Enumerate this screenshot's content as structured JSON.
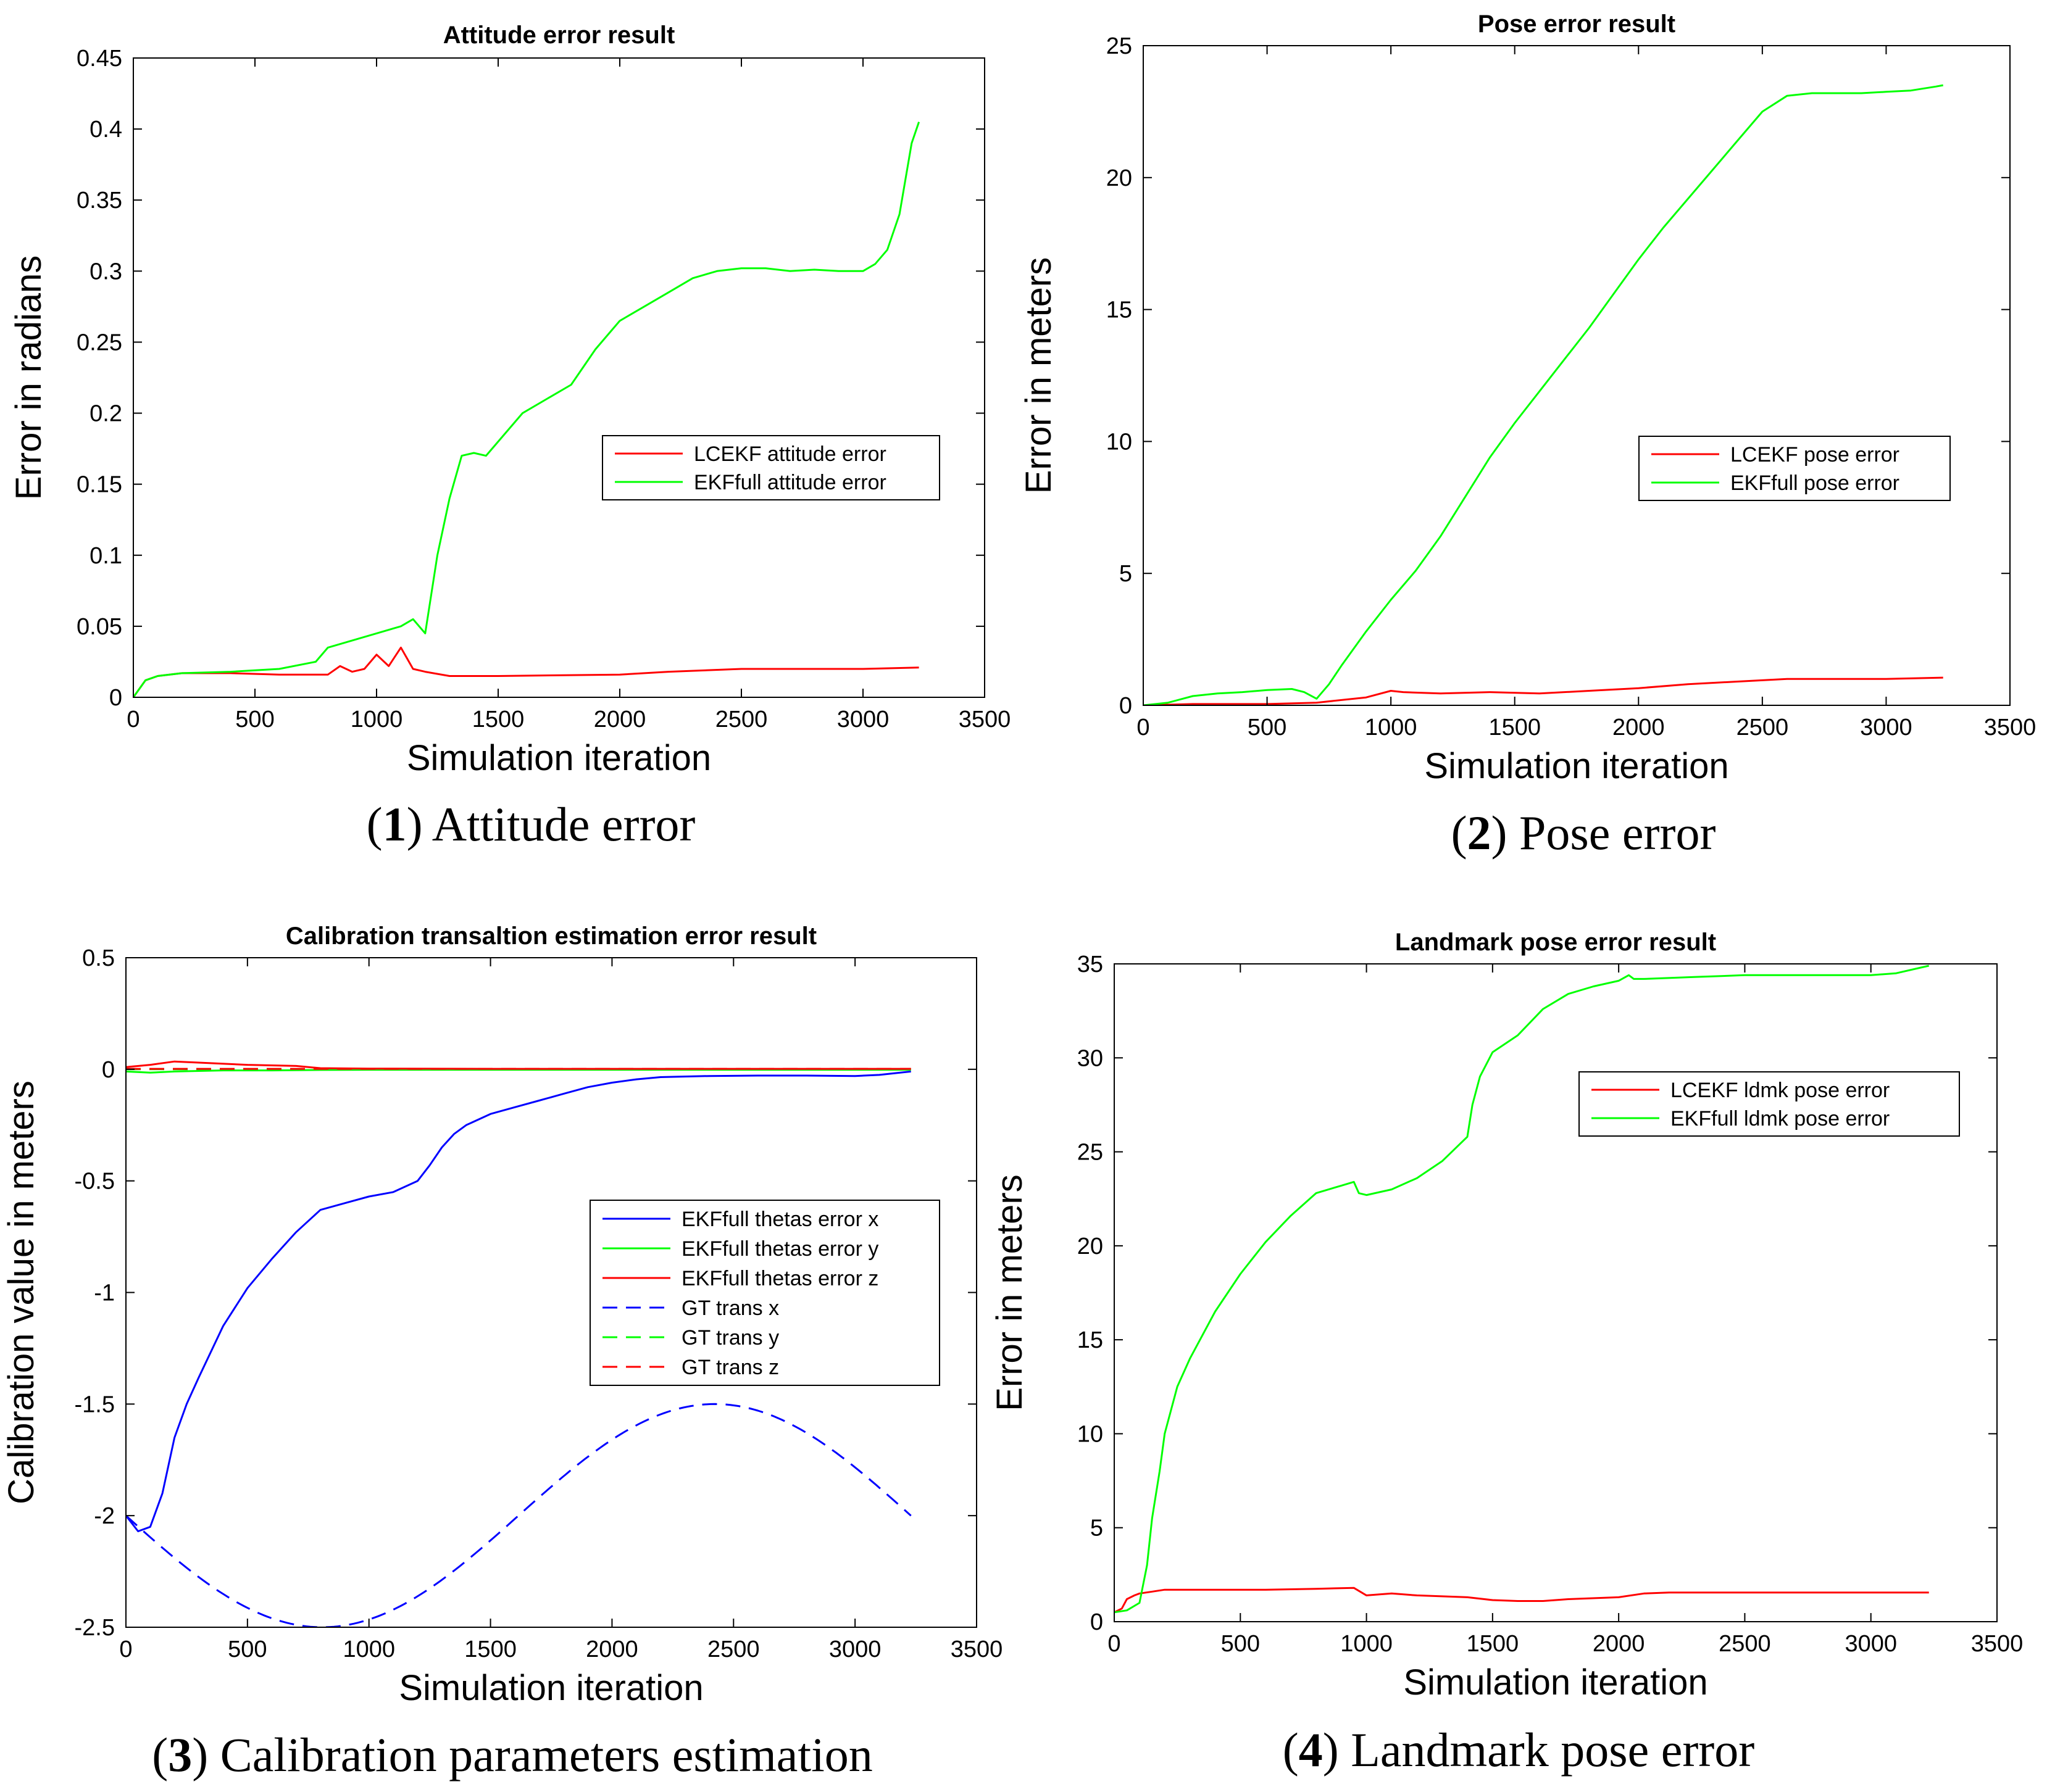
{
  "figure": {
    "panels": [
      {
        "caption_number": "1",
        "caption_text": "Attitude error"
      },
      {
        "caption_number": "2",
        "caption_text": "Pose error"
      },
      {
        "caption_number": "3",
        "caption_text": "Calibration parameters estimation"
      },
      {
        "caption_number": "4",
        "caption_text": "Landmark pose error"
      }
    ]
  },
  "colors": {
    "red": "#ff0000",
    "green": "#00ff00",
    "blue": "#0000ff",
    "axis": "#000000"
  },
  "chart_data": [
    {
      "type": "line",
      "title": "Attitude error result",
      "xlabel": "Simulation iteration",
      "ylabel": "Error in radians",
      "xlim": [
        0,
        3500
      ],
      "ylim": [
        0,
        0.45
      ],
      "xticks": [
        0,
        500,
        1000,
        1500,
        2000,
        2500,
        3000,
        3500
      ],
      "xtick_labels": [
        "0",
        "500",
        "1000",
        "1500",
        "2000",
        "2500",
        "3000",
        "3500"
      ],
      "yticks": [
        0,
        0.05,
        0.1,
        0.15,
        0.2,
        0.25,
        0.3,
        0.35,
        0.4,
        0.45
      ],
      "ytick_labels": [
        "0",
        "0.05",
        "0.1",
        "0.15",
        "0.2",
        "0.25",
        "0.3",
        "0.35",
        "0.4",
        "0.45"
      ],
      "legend_position": "middle-right",
      "series": [
        {
          "name": "LCEKF attitude error",
          "color": "#ff0000",
          "style": "solid",
          "x": [
            0,
            50,
            100,
            200,
            400,
            600,
            800,
            850,
            900,
            950,
            1000,
            1050,
            1100,
            1150,
            1200,
            1300,
            1500,
            2000,
            2200,
            2500,
            3000,
            3230
          ],
          "y": [
            0,
            0.012,
            0.015,
            0.017,
            0.017,
            0.016,
            0.016,
            0.022,
            0.018,
            0.02,
            0.03,
            0.022,
            0.035,
            0.02,
            0.018,
            0.015,
            0.015,
            0.016,
            0.018,
            0.02,
            0.02,
            0.021
          ]
        },
        {
          "name": "EKFfull attitude error",
          "color": "#00ff00",
          "style": "solid",
          "x": [
            0,
            50,
            100,
            200,
            400,
            600,
            750,
            800,
            900,
            1000,
            1100,
            1150,
            1200,
            1250,
            1300,
            1350,
            1400,
            1450,
            1500,
            1600,
            1700,
            1800,
            1900,
            2000,
            2100,
            2200,
            2300,
            2400,
            2500,
            2600,
            2700,
            2800,
            2900,
            3000,
            3050,
            3100,
            3150,
            3200,
            3230
          ],
          "y": [
            0,
            0.012,
            0.015,
            0.017,
            0.018,
            0.02,
            0.025,
            0.035,
            0.04,
            0.045,
            0.05,
            0.055,
            0.045,
            0.1,
            0.14,
            0.17,
            0.172,
            0.17,
            0.18,
            0.2,
            0.21,
            0.22,
            0.245,
            0.265,
            0.275,
            0.285,
            0.295,
            0.3,
            0.302,
            0.302,
            0.3,
            0.301,
            0.3,
            0.3,
            0.305,
            0.315,
            0.34,
            0.39,
            0.405
          ]
        }
      ]
    },
    {
      "type": "line",
      "title": "Pose error result",
      "xlabel": "Simulation iteration",
      "ylabel": "Error in meters",
      "xlim": [
        0,
        3500
      ],
      "ylim": [
        0,
        25
      ],
      "xticks": [
        0,
        500,
        1000,
        1500,
        2000,
        2500,
        3000,
        3500
      ],
      "xtick_labels": [
        "0",
        "500",
        "1000",
        "1500",
        "2000",
        "2500",
        "3000",
        "3500"
      ],
      "yticks": [
        0,
        5,
        10,
        15,
        20,
        25
      ],
      "ytick_labels": [
        "0",
        "5",
        "10",
        "15",
        "20",
        "25"
      ],
      "legend_position": "middle-right",
      "series": [
        {
          "name": "LCEKF pose error",
          "color": "#ff0000",
          "style": "solid",
          "x": [
            0,
            200,
            500,
            700,
            900,
            1000,
            1050,
            1200,
            1400,
            1600,
            1800,
            2000,
            2200,
            2400,
            2600,
            2800,
            3000,
            3230
          ],
          "y": [
            0,
            0.05,
            0.05,
            0.1,
            0.3,
            0.55,
            0.5,
            0.45,
            0.5,
            0.45,
            0.55,
            0.65,
            0.8,
            0.9,
            1.0,
            1.0,
            1.0,
            1.05
          ]
        },
        {
          "name": "EKFfull pose error",
          "color": "#00ff00",
          "style": "solid",
          "x": [
            0,
            100,
            200,
            300,
            400,
            500,
            600,
            650,
            700,
            750,
            800,
            900,
            1000,
            1100,
            1200,
            1300,
            1400,
            1500,
            1600,
            1700,
            1800,
            1900,
            2000,
            2100,
            2200,
            2300,
            2400,
            2500,
            2600,
            2700,
            2800,
            2900,
            3000,
            3100,
            3200,
            3230
          ],
          "y": [
            0,
            0.1,
            0.35,
            0.45,
            0.5,
            0.58,
            0.62,
            0.5,
            0.25,
            0.8,
            1.5,
            2.8,
            4.0,
            5.1,
            6.4,
            7.9,
            9.4,
            10.7,
            11.9,
            13.1,
            14.3,
            15.6,
            16.9,
            18.1,
            19.2,
            20.3,
            21.4,
            22.5,
            23.1,
            23.2,
            23.2,
            23.2,
            23.25,
            23.3,
            23.45,
            23.5
          ]
        }
      ]
    },
    {
      "type": "line",
      "title": "Calibration transaltion estimation error result",
      "xlabel": "Simulation iteration",
      "ylabel": "Calibration value in meters",
      "xlim": [
        0,
        3500
      ],
      "ylim": [
        -2.5,
        0.5
      ],
      "xticks": [
        0,
        500,
        1000,
        1500,
        2000,
        2500,
        3000,
        3500
      ],
      "xtick_labels": [
        "0",
        "500",
        "1000",
        "1500",
        "2000",
        "2500",
        "3000",
        "3500"
      ],
      "yticks": [
        -2.5,
        -2,
        -1.5,
        -1,
        -0.5,
        0,
        0.5
      ],
      "ytick_labels": [
        "-2.5",
        "-2",
        "-1.5",
        "-1",
        "-0.5",
        "0",
        "0.5"
      ],
      "legend_position": "bottom-right",
      "series": [
        {
          "name": "EKFfull thetas error x",
          "color": "#0000ff",
          "style": "solid",
          "x": [
            0,
            50,
            100,
            150,
            200,
            250,
            300,
            400,
            500,
            600,
            700,
            800,
            900,
            1000,
            1100,
            1200,
            1250,
            1300,
            1350,
            1400,
            1500,
            1600,
            1700,
            1800,
            1900,
            2000,
            2100,
            2200,
            2400,
            2600,
            2800,
            3000,
            3100,
            3230
          ],
          "y": [
            -2.0,
            -2.07,
            -2.05,
            -1.9,
            -1.65,
            -1.5,
            -1.38,
            -1.15,
            -0.98,
            -0.85,
            -0.73,
            -0.63,
            -0.6,
            -0.57,
            -0.55,
            -0.5,
            -0.43,
            -0.35,
            -0.29,
            -0.25,
            -0.2,
            -0.17,
            -0.14,
            -0.11,
            -0.08,
            -0.06,
            -0.045,
            -0.035,
            -0.03,
            -0.028,
            -0.028,
            -0.03,
            -0.025,
            -0.01
          ]
        },
        {
          "name": "EKFfull thetas error y",
          "color": "#00ff00",
          "style": "solid",
          "x": [
            0,
            100,
            200,
            400,
            600,
            800,
            1000,
            1500,
            2000,
            2500,
            3000,
            3230
          ],
          "y": [
            -0.01,
            -0.015,
            -0.01,
            -0.005,
            -0.005,
            -0.003,
            -0.002,
            -0.002,
            -0.002,
            -0.002,
            -0.002,
            -0.002
          ]
        },
        {
          "name": "EKFfull thetas error z",
          "color": "#ff0000",
          "style": "solid",
          "x": [
            0,
            100,
            200,
            300,
            500,
            700,
            800,
            1000,
            1500,
            2000,
            2500,
            3000,
            3230
          ],
          "y": [
            0.01,
            0.02,
            0.035,
            0.03,
            0.02,
            0.015,
            0.005,
            0.003,
            0.002,
            0.002,
            0.002,
            0.002,
            0.002
          ]
        },
        {
          "name": "GT trans x",
          "color": "#0000ff",
          "style": "dashed",
          "function": "sine",
          "amplitude": 0.5,
          "offset": -2.0,
          "period": 3230,
          "phase": 3.14159,
          "x_range": [
            0,
            3230
          ]
        },
        {
          "name": "GT trans y",
          "color": "#00ff00",
          "style": "dashed",
          "x": [
            0,
            3230
          ],
          "y": [
            0,
            0
          ]
        },
        {
          "name": "GT trans z",
          "color": "#ff0000",
          "style": "dashed",
          "x": [
            0,
            3230
          ],
          "y": [
            0.002,
            0.002
          ]
        }
      ]
    },
    {
      "type": "line",
      "title": "Landmark pose error result",
      "xlabel": "Simulation iteration",
      "ylabel": "Error in meters",
      "xlim": [
        0,
        3500
      ],
      "ylim": [
        0,
        35
      ],
      "xticks": [
        0,
        500,
        1000,
        1500,
        2000,
        2500,
        3000,
        3500
      ],
      "xtick_labels": [
        "0",
        "500",
        "1000",
        "1500",
        "2000",
        "2500",
        "3000",
        "3500"
      ],
      "yticks": [
        0,
        5,
        10,
        15,
        20,
        25,
        30,
        35
      ],
      "ytick_labels": [
        "0",
        "5",
        "10",
        "15",
        "20",
        "25",
        "30",
        "35"
      ],
      "legend_position": "top-right",
      "series": [
        {
          "name": "LCEKF ldmk pose error",
          "color": "#ff0000",
          "style": "solid",
          "x": [
            0,
            30,
            50,
            80,
            100,
            150,
            200,
            400,
            600,
            800,
            950,
            1000,
            1100,
            1200,
            1400,
            1500,
            1600,
            1700,
            1800,
            2000,
            2100,
            2200,
            2500,
            3000,
            3230
          ],
          "y": [
            0.5,
            0.7,
            1.2,
            1.4,
            1.5,
            1.6,
            1.7,
            1.7,
            1.7,
            1.75,
            1.8,
            1.4,
            1.5,
            1.4,
            1.3,
            1.15,
            1.1,
            1.1,
            1.2,
            1.3,
            1.5,
            1.55,
            1.55,
            1.55,
            1.55
          ]
        },
        {
          "name": "EKFfull ldmk pose error",
          "color": "#00ff00",
          "style": "solid",
          "x": [
            0,
            50,
            100,
            130,
            150,
            180,
            200,
            250,
            300,
            400,
            500,
            600,
            700,
            800,
            900,
            950,
            970,
            1000,
            1100,
            1200,
            1300,
            1400,
            1420,
            1450,
            1500,
            1600,
            1700,
            1800,
            1900,
            2000,
            2040,
            2060,
            2100,
            2300,
            2500,
            2800,
            3000,
            3100,
            3230
          ],
          "y": [
            0.5,
            0.6,
            1.0,
            3.0,
            5.5,
            8.0,
            10.0,
            12.5,
            14.0,
            16.5,
            18.5,
            20.2,
            21.6,
            22.8,
            23.2,
            23.4,
            22.8,
            22.7,
            23.0,
            23.6,
            24.5,
            25.8,
            27.5,
            29.0,
            30.3,
            31.2,
            32.6,
            33.4,
            33.8,
            34.1,
            34.4,
            34.2,
            34.2,
            34.3,
            34.4,
            34.4,
            34.4,
            34.5,
            34.9
          ]
        }
      ]
    }
  ]
}
